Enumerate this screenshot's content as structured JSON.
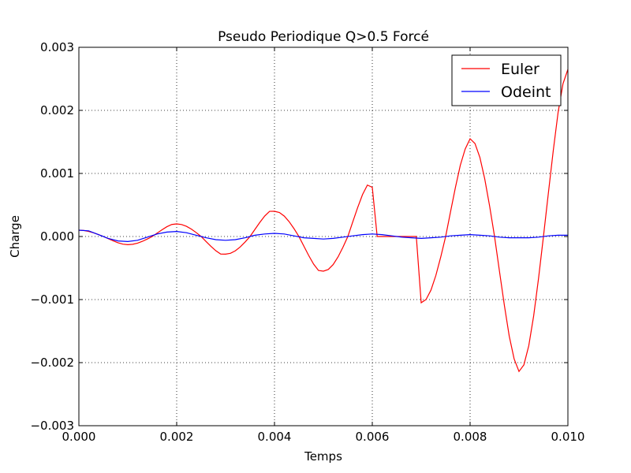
{
  "chart_data": {
    "type": "line",
    "title": "Pseudo Periodique Q>0.5 Forcé",
    "xlabel": "Temps",
    "ylabel": "Charge",
    "xlim": [
      0.0,
      0.01
    ],
    "ylim": [
      -0.003,
      0.003
    ],
    "x_ticks": [
      "0.000",
      "0.002",
      "0.004",
      "0.006",
      "0.008",
      "0.010"
    ],
    "y_ticks": [
      "0.003",
      "0.002",
      "0.001",
      "0.000",
      "−0.001",
      "−0.002",
      "−0.003"
    ],
    "grid": true,
    "grid_style": "dotted",
    "legend_position": "top-right",
    "series": [
      {
        "name": "Euler",
        "color": "#ff0000",
        "x": [
          0.0,
          0.0001,
          0.0002,
          0.0003,
          0.0004,
          0.0005,
          0.0006,
          0.0007,
          0.0008,
          0.0009,
          0.001,
          0.0011,
          0.0012,
          0.0013,
          0.0014,
          0.0015,
          0.0016,
          0.0017,
          0.0018,
          0.0019,
          0.002,
          0.0021,
          0.0022,
          0.0023,
          0.0024,
          0.0025,
          0.0026,
          0.0027,
          0.0028,
          0.0029,
          0.003,
          0.0031,
          0.0032,
          0.0033,
          0.0034,
          0.0035,
          0.0036,
          0.0037,
          0.0038,
          0.0039,
          0.004,
          0.0041,
          0.0042,
          0.0043,
          0.0044,
          0.0045,
          0.0046,
          0.0047,
          0.0048,
          0.0049,
          0.005,
          0.0051,
          0.0052,
          0.0053,
          0.0054,
          0.0055,
          0.0056,
          0.0057,
          0.0058,
          0.0059,
          0.006,
          0.0061,
          0.0062,
          0.0063,
          0.0064,
          0.0065,
          0.0066,
          0.0067,
          0.0068,
          0.0069,
          0.007,
          0.0071,
          0.0072,
          0.0073,
          0.0074,
          0.0075,
          0.0076,
          0.0077,
          0.0078,
          0.0079,
          0.008,
          0.0081,
          0.0082,
          0.0083,
          0.0084,
          0.0085,
          0.0086,
          0.0087,
          0.0088,
          0.0089,
          0.009,
          0.0091,
          0.0092,
          0.0093,
          0.0094,
          0.0095,
          0.0096,
          0.0097,
          0.0098,
          0.0099,
          0.01
        ],
        "y": [
          0.0001,
          9.51e-05,
          8.09e-05,
          5.88e-05,
          3.09e-05,
          0.0,
          -3.43e-05,
          -6.8e-05,
          -9.88e-05,
          -0.0001215,
          -0.00013,
          -0.0001236,
          -0.0001051,
          -7.64e-05,
          -4.01e-05,
          0.0,
          5.39e-05,
          0.0001068,
          0.0001552,
          0.0001908,
          0.0002,
          0.0001902,
          0.0001618,
          0.0001176,
          6.18e-05,
          0.0,
          -7.84e-05,
          -0.0001554,
          -0.0002258,
          -0.0002777,
          -0.00028,
          -0.0002663,
          -0.0002265,
          -0.0001646,
          -8.65e-05,
          0.0,
          0.0001128,
          0.0002236,
          0.0003248,
          0.0003993,
          0.0004,
          0.0003804,
          0.0003236,
          0.0002351,
          0.0001236,
          0.0,
          -0.000152,
          -0.0003014,
          -0.0004378,
          -0.0005382,
          -0.00055,
          -0.0005231,
          -0.000445,
          -0.0003233,
          -0.00017,
          0.0,
          0.0002304,
          0.0004568,
          0.0006636,
          0.0008157,
          0.00078,
          -1e-07,
          -1e-07,
          -1e-07,
          -1e-07,
          -1e-07,
          -1e-07,
          -1e-07,
          -1e-07,
          -1e-07,
          -0.00105,
          -0.0009986,
          -0.0008495,
          -0.0006172,
          -0.0003245,
          0.0,
          0.0003922,
          0.0007775,
          0.0011295,
          0.0013884,
          0.00155,
          0.0014741,
          0.001254,
          0.0009111,
          0.000479,
          0.0,
          -0.0005479,
          -0.0010863,
          -0.001578,
          -0.0019398,
          -0.00214,
          -0.0020353,
          -0.0017314,
          -0.0012579,
          -0.0006613,
          0.0,
          0.0006843,
          0.0013566,
          0.0019707,
          0.0024226,
          0.00265
        ]
      },
      {
        "name": "Odeint",
        "color": "#0000ff",
        "x": [
          0.0,
          0.0002,
          0.0004,
          0.0006,
          0.0008,
          0.001,
          0.0012,
          0.0014,
          0.0016,
          0.0018,
          0.002,
          0.0022,
          0.0024,
          0.0026,
          0.0028,
          0.003,
          0.0032,
          0.0034,
          0.0036,
          0.0038,
          0.004,
          0.0042,
          0.0044,
          0.0046,
          0.0048,
          0.005,
          0.0052,
          0.0054,
          0.0056,
          0.0058,
          0.006,
          0.0062,
          0.0064,
          0.0066,
          0.0068,
          0.007,
          0.0072,
          0.0074,
          0.0076,
          0.0078,
          0.008,
          0.0082,
          0.0084,
          0.0086,
          0.0088,
          0.009,
          0.0092,
          0.0094,
          0.0096,
          0.0098,
          0.01
        ],
        "y": [
          0.0001,
          9e-05,
          3e-05,
          -3e-05,
          -7e-05,
          -8e-05,
          -6e-05,
          -1e-05,
          4e-05,
          7e-05,
          8e-05,
          6e-05,
          2e-05,
          -2e-05,
          -5e-05,
          -6e-05,
          -5e-05,
          -2e-05,
          2e-05,
          4e-05,
          5e-05,
          4e-05,
          1e-05,
          -2e-05,
          -3e-05,
          -4e-05,
          -3e-05,
          -1e-05,
          1e-05,
          3e-05,
          4e-05,
          3e-05,
          1e-05,
          -1e-05,
          -2e-05,
          -3e-05,
          -2e-05,
          -1e-05,
          1e-05,
          2e-05,
          3e-05,
          2e-05,
          1e-05,
          -1e-05,
          -2e-05,
          -2e-05,
          -2e-05,
          -1e-05,
          1e-05,
          2e-05,
          2e-05
        ]
      }
    ]
  }
}
